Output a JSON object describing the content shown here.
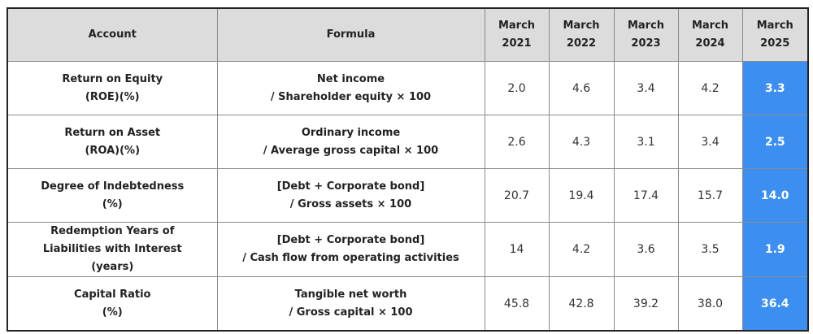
{
  "table": {
    "headers": {
      "account": "Account",
      "formula": "Formula",
      "years": [
        {
          "month": "March",
          "year": "2021"
        },
        {
          "month": "March",
          "year": "2022"
        },
        {
          "month": "March",
          "year": "2023"
        },
        {
          "month": "March",
          "year": "2024"
        },
        {
          "month": "March",
          "year": "2025"
        }
      ]
    },
    "rows": [
      {
        "account": [
          "Return on Equity",
          "(ROE)(%)"
        ],
        "formula": [
          "Net income",
          "/ Shareholder equity × 100"
        ],
        "values": [
          "2.0",
          "4.6",
          "3.4",
          "4.2",
          "3.3"
        ]
      },
      {
        "account": [
          "Return on Asset",
          "(ROA)(%)"
        ],
        "formula": [
          "Ordinary income",
          "/ Average gross capital × 100"
        ],
        "values": [
          "2.6",
          "4.3",
          "3.1",
          "3.4",
          "2.5"
        ]
      },
      {
        "account": [
          "Degree of Indebtedness",
          "(%)"
        ],
        "formula": [
          "[Debt + Corporate bond]",
          "/ Gross assets × 100"
        ],
        "values": [
          "20.7",
          "19.4",
          "17.4",
          "15.7",
          "14.0"
        ]
      },
      {
        "account": [
          "Redemption Years of",
          "Liabilities with Interest",
          "(years)"
        ],
        "formula": [
          "[Debt + Corporate bond]",
          "/ Cash flow from operating activities"
        ],
        "values": [
          "14",
          "4.2",
          "3.6",
          "3.5",
          "1.9"
        ]
      },
      {
        "account": [
          "Capital Ratio",
          "(%)"
        ],
        "formula": [
          "Tangible net worth",
          "/ Gross capital × 100"
        ],
        "values": [
          "45.8",
          "42.8",
          "39.2",
          "38.0",
          "36.4"
        ]
      }
    ],
    "highlight_color": "#3c8ff1"
  }
}
